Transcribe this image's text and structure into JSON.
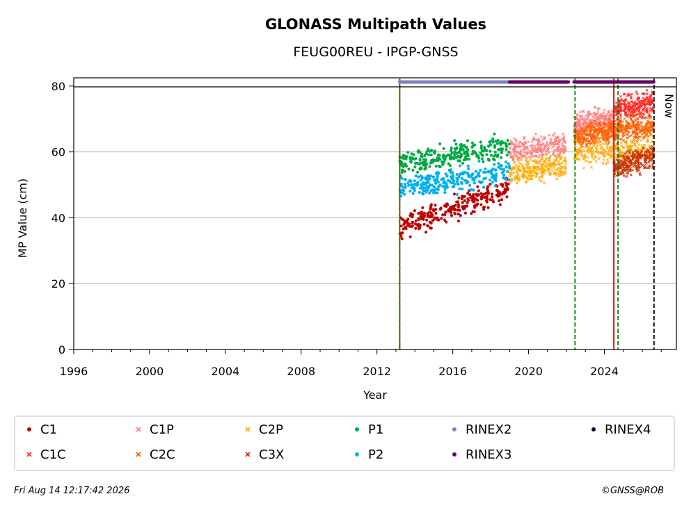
{
  "chart_data": {
    "type": "scatter",
    "title": "GLONASS Multipath Values",
    "subtitle": "FEUG00REU - IPGP-GNSS",
    "xlabel": "Year",
    "ylabel": "MP Value (cm)",
    "xlim": [
      1996,
      2027.8
    ],
    "ylim": [
      0,
      82.5
    ],
    "x_ticks": [
      "1996",
      "2000",
      "2004",
      "2008",
      "2012",
      "2016",
      "2020",
      "2024"
    ],
    "y_ticks": [
      "0",
      "20",
      "40",
      "60",
      "80"
    ],
    "grid": "horizontal",
    "now_label": "Now",
    "series": [
      {
        "name": "C1",
        "color": "#c00000",
        "marker": "dot",
        "segments": [
          {
            "x": [
              2013.2,
              2019.0
            ],
            "y": [
              37,
              49
            ]
          }
        ]
      },
      {
        "name": "C1C",
        "color": "#ff2a2a",
        "marker": "cross",
        "segments": [
          {
            "x": [
              2024.5,
              2026.6
            ],
            "y": [
              73,
              75
            ]
          }
        ]
      },
      {
        "name": "C1P",
        "color": "#ff7f7f",
        "marker": "cross",
        "segments": [
          {
            "x": [
              2019.0,
              2022.0
            ],
            "y": [
              60,
              62
            ]
          },
          {
            "x": [
              2022.4,
              2024.5
            ],
            "y": [
              68,
              70
            ]
          }
        ]
      },
      {
        "name": "C2C",
        "color": "#ff6000",
        "marker": "cross",
        "segments": [
          {
            "x": [
              2022.4,
              2024.5
            ],
            "y": [
              64,
              67
            ]
          },
          {
            "x": [
              2024.5,
              2026.6
            ],
            "y": [
              66,
              68
            ]
          }
        ]
      },
      {
        "name": "C2P",
        "color": "#ffaa00",
        "marker": "cross",
        "segments": [
          {
            "x": [
              2019.0,
              2022.0
            ],
            "y": [
              54,
              56
            ]
          },
          {
            "x": [
              2022.4,
              2026.6
            ],
            "y": [
              59,
              61
            ]
          }
        ]
      },
      {
        "name": "C3X",
        "color": "#cc3300",
        "marker": "cross",
        "segments": [
          {
            "x": [
              2024.5,
              2026.6
            ],
            "y": [
              55,
              59
            ]
          }
        ]
      },
      {
        "name": "P1",
        "color": "#00aa44",
        "marker": "dot",
        "segments": [
          {
            "x": [
              2013.2,
              2019.0
            ],
            "y": [
              56,
              62
            ]
          }
        ]
      },
      {
        "name": "P2",
        "color": "#00b0f0",
        "marker": "dot",
        "segments": [
          {
            "x": [
              2013.2,
              2019.0
            ],
            "y": [
              49,
              54
            ]
          }
        ]
      }
    ],
    "rinex_bars": [
      {
        "name": "RINEX2",
        "color": "#8080c0",
        "x": [
          2013.2,
          2019.0
        ]
      },
      {
        "name": "RINEX3",
        "color": "#660066",
        "x": [
          2019.0,
          2022.1
        ]
      },
      {
        "name": "RINEX3",
        "color": "#660066",
        "x": [
          2022.4,
          2026.6
        ]
      }
    ],
    "vlines": [
      {
        "x": 2013.2,
        "color": "#c00000",
        "style": "solid"
      },
      {
        "x": 2013.2,
        "color": "#008000",
        "style": "dashed"
      },
      {
        "x": 2022.45,
        "color": "#008000",
        "style": "dashed"
      },
      {
        "x": 2024.5,
        "color": "#cc0000",
        "style": "solid"
      },
      {
        "x": 2024.72,
        "color": "#008000",
        "style": "dashed"
      },
      {
        "x": 2026.62,
        "color": "#000000",
        "style": "dashed"
      }
    ],
    "legend": [
      {
        "name": "C1",
        "color": "#c00000",
        "marker": "dot"
      },
      {
        "name": "C1P",
        "color": "#ff7f7f",
        "marker": "cross"
      },
      {
        "name": "C2P",
        "color": "#ffaa00",
        "marker": "cross"
      },
      {
        "name": "P1",
        "color": "#00aa44",
        "marker": "dot"
      },
      {
        "name": "RINEX2",
        "color": "#8080c0",
        "marker": "dot"
      },
      {
        "name": "RINEX4",
        "color": "#1a0033",
        "marker": "dot"
      },
      {
        "name": "C1C",
        "color": "#ff2a2a",
        "marker": "cross"
      },
      {
        "name": "C2C",
        "color": "#ff6000",
        "marker": "cross"
      },
      {
        "name": "C3X",
        "color": "#cc3300",
        "marker": "cross"
      },
      {
        "name": "P2",
        "color": "#00b0f0",
        "marker": "dot"
      },
      {
        "name": "RINEX3",
        "color": "#660066",
        "marker": "dot"
      }
    ],
    "footer_left": "Fri Aug 14 12:17:42 2026",
    "footer_right": "©GNSS@ROB"
  }
}
